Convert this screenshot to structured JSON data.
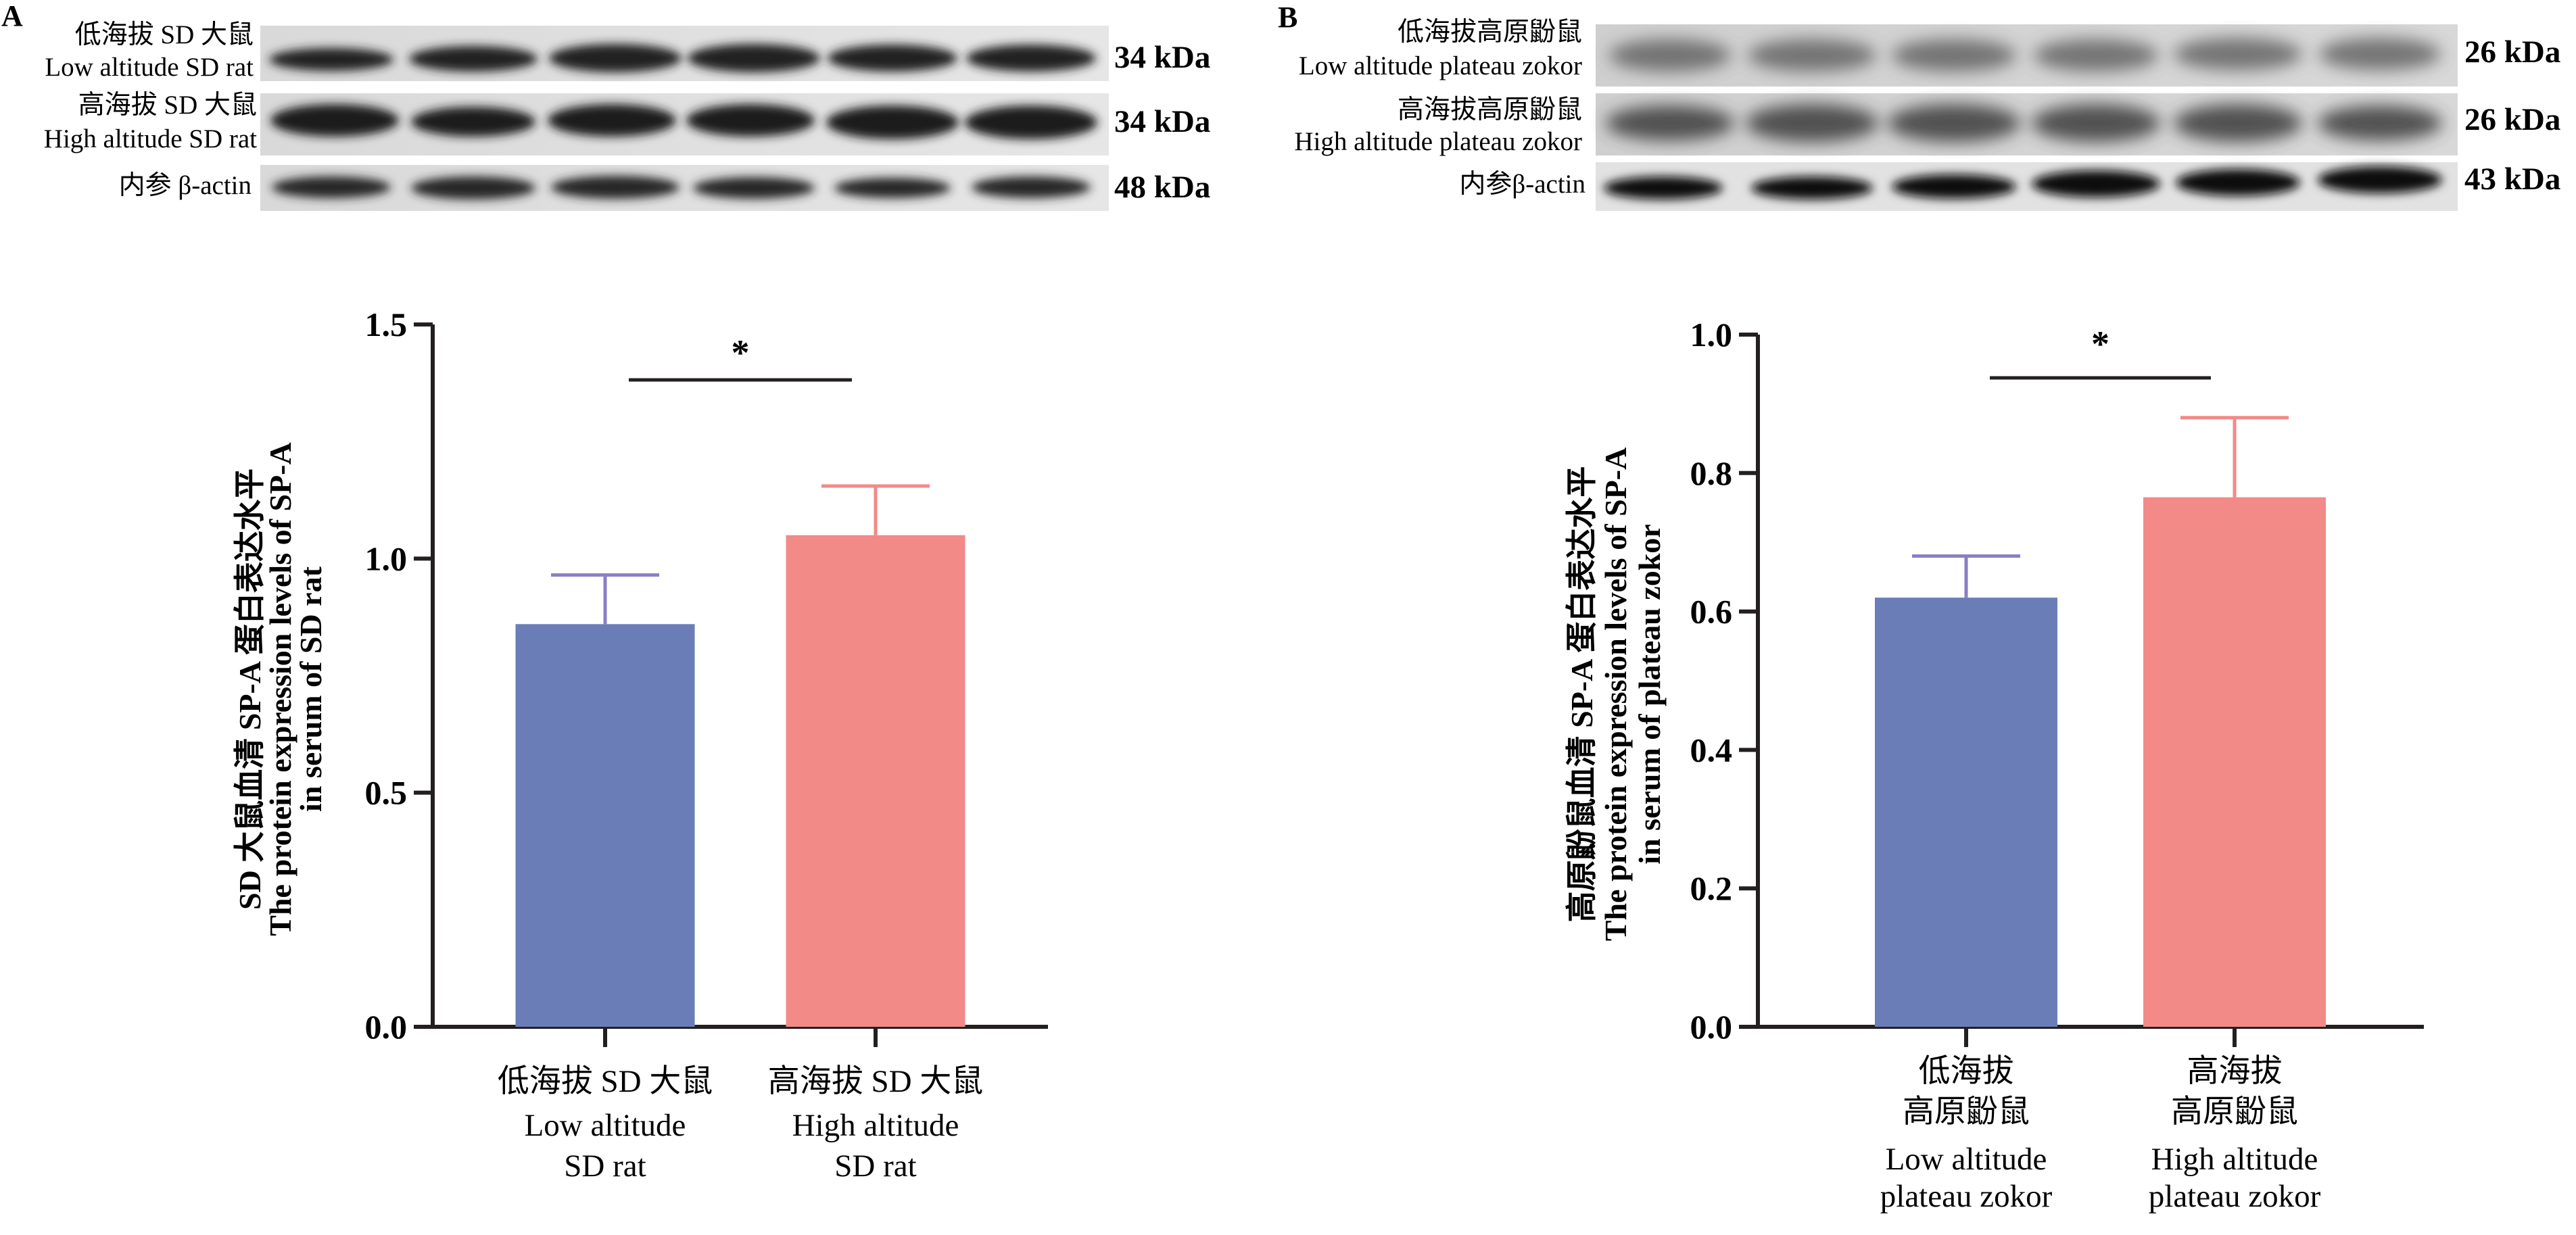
{
  "panels": [
    {
      "letter": "A",
      "blots": [
        {
          "cn": "低海拔 SD 大鼠",
          "en": "Low altitude SD rat",
          "kda": "34 kDa"
        },
        {
          "cn": "高海拔 SD 大鼠",
          "en": "High altitude SD rat",
          "kda": "34 kDa"
        },
        {
          "cn": "内参 β-actin",
          "en": "",
          "kda": "48 kDa"
        }
      ]
    },
    {
      "letter": "B",
      "blots": [
        {
          "cn": "低海拔高原鼢鼠",
          "en": "Low altitude plateau zokor",
          "kda": "26 kDa"
        },
        {
          "cn": "高海拔高原鼢鼠",
          "en": "High altitude plateau zokor",
          "kda": "26 kDa"
        },
        {
          "cn": "内参β-actin",
          "en": "",
          "kda": "43 kDa"
        }
      ]
    }
  ],
  "colors": {
    "low": "#6a7db6",
    "high": "#f28a88",
    "err_low": "#8a7fc4",
    "err_high": "#f28a88",
    "axis": "#231f20"
  },
  "chart_data": [
    {
      "type": "bar",
      "categories": [
        "低海拔 SD 大鼠 Low altitude SD rat",
        "高海拔 SD 大鼠 High altitude SD rat"
      ],
      "category_lines": [
        [
          "低海拔 SD 大鼠",
          "Low altitude",
          "SD rat"
        ],
        [
          "高海拔 SD 大鼠",
          "High altitude",
          "SD rat"
        ]
      ],
      "values": [
        0.86,
        1.05
      ],
      "errors": [
        0.105,
        0.105
      ],
      "ylim": [
        0,
        1.5
      ],
      "yticks": [
        "0.0",
        "0.5",
        "1.0",
        "1.5"
      ],
      "ytick_values": [
        0,
        0.5,
        1.0,
        1.5
      ],
      "ylabel_lines": [
        "SD 大鼠血清 SP-A 蛋白表达水平",
        "The protein expression levels of SP-A",
        "in serum of SD rat"
      ],
      "significance": "*"
    },
    {
      "type": "bar",
      "categories": [
        "低海拔高原鼢鼠 Low altitude plateau zokor",
        "高海拔高原鼢鼠 High altitude plateau zokor"
      ],
      "category_lines": [
        [
          "低海拔",
          "高原鼢鼠",
          "Low altitude",
          "plateau zokor"
        ],
        [
          "高海拔",
          "高原鼢鼠",
          "High altitude",
          "plateau zokor"
        ]
      ],
      "values": [
        0.62,
        0.765
      ],
      "errors": [
        0.06,
        0.115
      ],
      "ylim": [
        0,
        1.0
      ],
      "yticks": [
        "0.0",
        "0.2",
        "0.4",
        "0.6",
        "0.8",
        "1.0"
      ],
      "ytick_values": [
        0,
        0.2,
        0.4,
        0.6,
        0.8,
        1.0
      ],
      "ylabel_lines": [
        "高原鼢鼠血清 SP-A 蛋白表达水平",
        "The protein expression levels of SP-A",
        "in serum of plateau zokor"
      ],
      "significance": "*"
    }
  ]
}
